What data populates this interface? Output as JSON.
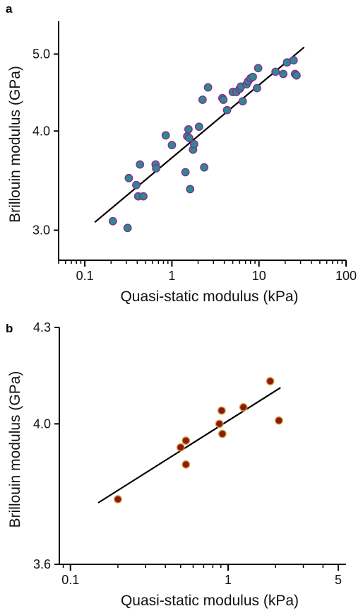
{
  "chart_data": [
    {
      "type": "scatter",
      "panel_label": "a",
      "xlabel": "Quasi-static modulus (kPa)",
      "ylabel": "Brillouin modulus (GPa)",
      "x_scale": "log",
      "y_scale": "log",
      "xlim": [
        0.05,
        100
      ],
      "ylim": [
        2.75,
        5.5
      ],
      "x_ticks": [
        0.1,
        1,
        10,
        100
      ],
      "x_tick_labels": [
        "0.1",
        "1",
        "10",
        "100"
      ],
      "y_ticks": [
        3.0,
        4.0,
        5.0
      ],
      "y_tick_labels": [
        "3.0",
        "4.0",
        "5.0"
      ],
      "marker_fill": "#2a8b8f",
      "marker_edge": "#8a2a8f",
      "points": [
        {
          "x": 0.21,
          "y": 3.08
        },
        {
          "x": 0.31,
          "y": 3.02
        },
        {
          "x": 0.32,
          "y": 3.49
        },
        {
          "x": 0.39,
          "y": 3.42
        },
        {
          "x": 0.41,
          "y": 3.31
        },
        {
          "x": 0.43,
          "y": 3.63
        },
        {
          "x": 0.47,
          "y": 3.31
        },
        {
          "x": 0.65,
          "y": 3.63
        },
        {
          "x": 0.66,
          "y": 3.59
        },
        {
          "x": 0.85,
          "y": 3.95
        },
        {
          "x": 1.0,
          "y": 3.84
        },
        {
          "x": 1.43,
          "y": 3.55
        },
        {
          "x": 1.5,
          "y": 3.94
        },
        {
          "x": 1.55,
          "y": 4.02
        },
        {
          "x": 1.58,
          "y": 3.92
        },
        {
          "x": 1.62,
          "y": 3.38
        },
        {
          "x": 1.75,
          "y": 3.79
        },
        {
          "x": 1.8,
          "y": 3.85
        },
        {
          "x": 2.05,
          "y": 4.05
        },
        {
          "x": 2.25,
          "y": 4.38
        },
        {
          "x": 2.35,
          "y": 3.6
        },
        {
          "x": 2.6,
          "y": 4.54
        },
        {
          "x": 3.8,
          "y": 4.4
        },
        {
          "x": 3.9,
          "y": 4.38
        },
        {
          "x": 4.3,
          "y": 4.25
        },
        {
          "x": 5.0,
          "y": 4.48
        },
        {
          "x": 5.5,
          "y": 4.48
        },
        {
          "x": 6.0,
          "y": 4.52
        },
        {
          "x": 6.2,
          "y": 4.55
        },
        {
          "x": 6.5,
          "y": 4.36
        },
        {
          "x": 7.2,
          "y": 4.58
        },
        {
          "x": 7.5,
          "y": 4.62
        },
        {
          "x": 8.0,
          "y": 4.66
        },
        {
          "x": 8.5,
          "y": 4.68
        },
        {
          "x": 9.5,
          "y": 4.53
        },
        {
          "x": 9.8,
          "y": 4.8
        },
        {
          "x": 15.5,
          "y": 4.75
        },
        {
          "x": 19.0,
          "y": 4.72
        },
        {
          "x": 21.0,
          "y": 4.88
        },
        {
          "x": 25.0,
          "y": 4.91
        },
        {
          "x": 26.0,
          "y": 4.72
        },
        {
          "x": 27.0,
          "y": 4.7
        }
      ],
      "fit_line": {
        "x": [
          0.13,
          33
        ],
        "y": [
          3.07,
          5.1
        ]
      }
    },
    {
      "type": "scatter",
      "panel_label": "b",
      "xlabel": "Quasi-static modulus (kPa)",
      "ylabel": "Brillouin modulus (GPa)",
      "x_scale": "log",
      "y_scale": "log",
      "xlim": [
        0.085,
        5.6
      ],
      "ylim": [
        3.6,
        4.3
      ],
      "x_ticks": [
        0.1,
        1,
        5
      ],
      "x_tick_labels": [
        "0.1",
        "1",
        "5"
      ],
      "y_ticks": [
        3.6,
        4.0,
        4.3
      ],
      "y_tick_labels": [
        "3.6",
        "4.0",
        "4.3"
      ],
      "marker_fill": "#8b1a12",
      "marker_edge": "#d8a13a",
      "points": [
        {
          "x": 0.2,
          "y": 3.78
        },
        {
          "x": 0.5,
          "y": 3.93
        },
        {
          "x": 0.54,
          "y": 3.95
        },
        {
          "x": 0.54,
          "y": 3.88
        },
        {
          "x": 0.88,
          "y": 4.0
        },
        {
          "x": 0.91,
          "y": 4.04
        },
        {
          "x": 0.92,
          "y": 3.97
        },
        {
          "x": 1.25,
          "y": 4.05
        },
        {
          "x": 1.85,
          "y": 4.13
        },
        {
          "x": 2.1,
          "y": 4.01
        }
      ],
      "fit_line": {
        "x": [
          0.15,
          2.15
        ],
        "y": [
          3.77,
          4.11
        ]
      }
    }
  ]
}
